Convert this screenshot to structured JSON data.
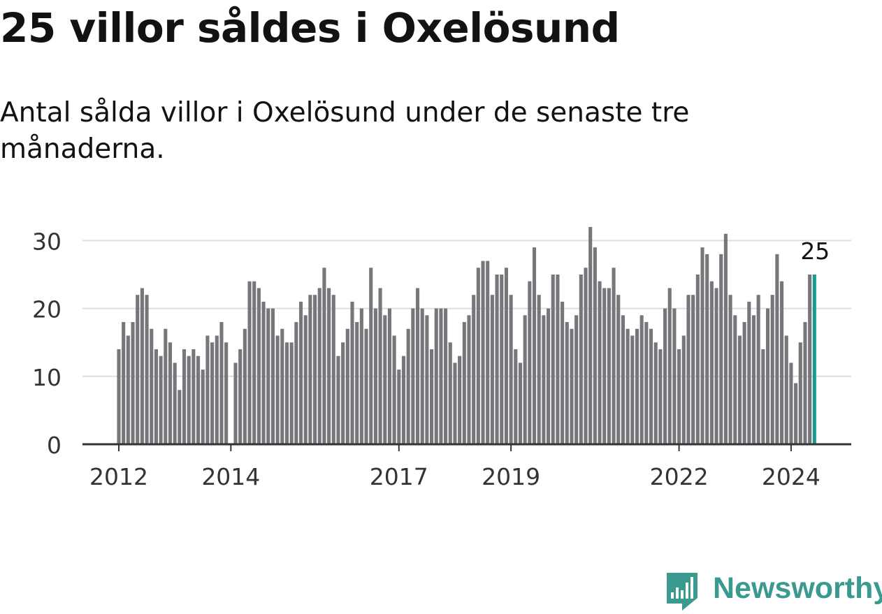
{
  "title": "25 villor såldes i Oxelösund",
  "subtitle": "Antal sålda villor i Oxelösund under de senaste tre månaderna.",
  "brand": "Newsworthy",
  "colors": {
    "bar": "#77767b",
    "highlight": "#1c9a90",
    "grid": "#dddddd",
    "axis": "#333333",
    "brand": "#3a9a8f"
  },
  "chart_data": {
    "type": "bar",
    "title": "",
    "xlabel": "",
    "ylabel": "",
    "ylim": [
      0,
      32
    ],
    "yticks": [
      0,
      10,
      20,
      30
    ],
    "xtick_labels": [
      "2012",
      "2014",
      "2017",
      "2019",
      "2022",
      "2024"
    ],
    "grid": true,
    "highlight_label": "25",
    "series": [
      {
        "segments": [
          {
            "start": "2012-01",
            "values": [
              14,
              18,
              16,
              18,
              22,
              23,
              22,
              17,
              14,
              13,
              17,
              15,
              12,
              8,
              14,
              13,
              14,
              13,
              11,
              16,
              15,
              16,
              18,
              15
            ]
          },
          {
            "start": "2014-02",
            "values": [
              12,
              14,
              17,
              24,
              24,
              23,
              21,
              20,
              20,
              16,
              17,
              15,
              15,
              18,
              21,
              19,
              22,
              22,
              23,
              26,
              23,
              22,
              13,
              15,
              17,
              21,
              18,
              20,
              17,
              26,
              20,
              23,
              19,
              20,
              16,
              11,
              13,
              17,
              20,
              23,
              20,
              19,
              14,
              20,
              20,
              20,
              15,
              12,
              13,
              18,
              19,
              22,
              26,
              27,
              27,
              22,
              25,
              25,
              26,
              22,
              14,
              12,
              19,
              24,
              29,
              22,
              19,
              20,
              25,
              25,
              21,
              18,
              17,
              19,
              25,
              26,
              32,
              29,
              24,
              23,
              23,
              26,
              22,
              19,
              17,
              16,
              17,
              19,
              18,
              17,
              15,
              14,
              20,
              23,
              20,
              14,
              16,
              22,
              22,
              25,
              29,
              28,
              24,
              23,
              28,
              31,
              22,
              19,
              16,
              18,
              21,
              19,
              22,
              14,
              20,
              22,
              28,
              24,
              16,
              12,
              9,
              15,
              18,
              25,
              25
            ]
          }
        ]
      }
    ]
  }
}
